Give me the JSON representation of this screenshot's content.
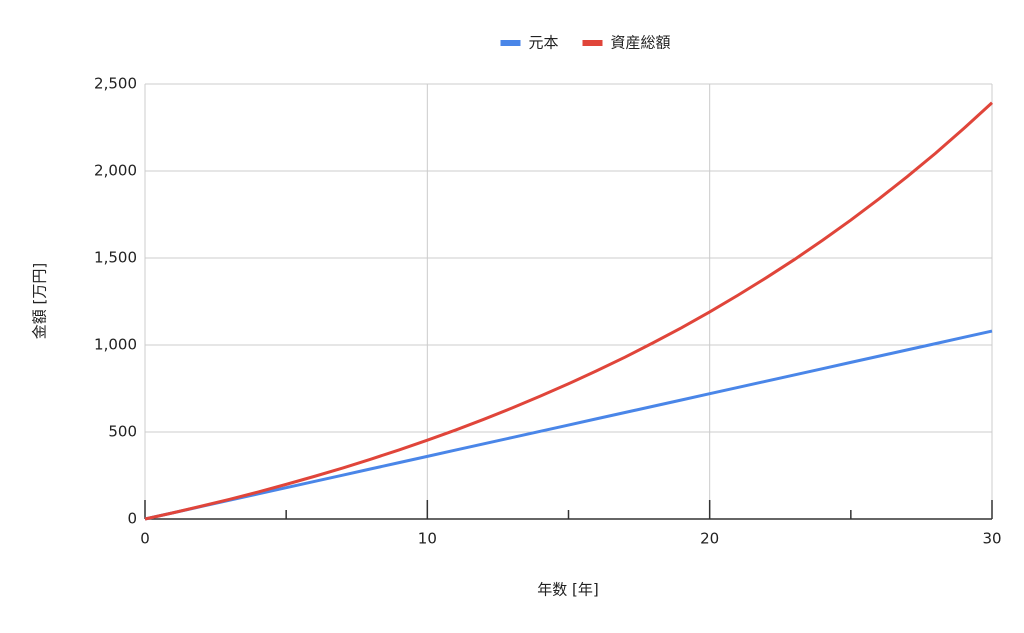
{
  "chart_data": {
    "type": "line",
    "x_label": "年数 [年]",
    "y_label": "金額 [万円]",
    "x": [
      0,
      1,
      2,
      3,
      4,
      5,
      6,
      7,
      8,
      9,
      10,
      11,
      12,
      13,
      14,
      15,
      16,
      17,
      18,
      19,
      20,
      21,
      22,
      23,
      24,
      25,
      26,
      27,
      28,
      29,
      30
    ],
    "series": [
      {
        "name": "元本",
        "color": "#4a86e8",
        "values": [
          0,
          36,
          72,
          108,
          144,
          180,
          216,
          252,
          288,
          324,
          360,
          396,
          432,
          468,
          504,
          540,
          576,
          612,
          648,
          684,
          720,
          756,
          792,
          828,
          864,
          900,
          936,
          972,
          1008,
          1044,
          1080
        ]
      },
      {
        "name": "資産総額",
        "color": "#e0453a",
        "values": [
          0,
          36,
          74,
          113,
          155,
          199,
          245,
          293,
          344,
          397,
          453,
          511,
          573,
          638,
          706,
          777,
          852,
          930,
          1013,
          1099,
          1190,
          1286,
          1386,
          1491,
          1602,
          1718,
          1840,
          1968,
          2102,
          2244,
          2392
        ]
      }
    ],
    "xlim": [
      0,
      30
    ],
    "xticks": [
      0,
      10,
      20,
      30
    ],
    "xminor_ticks": [
      5,
      15,
      25
    ],
    "ylim": [
      0,
      2500
    ],
    "yticks": [
      0,
      500,
      {
        "value": 1000,
        "label": "1,000"
      },
      {
        "value": 1500,
        "label": "1,500"
      },
      {
        "value": 2000,
        "label": "2,000"
      },
      {
        "value": 2500,
        "label": "2,500"
      }
    ],
    "grid": true,
    "legend": "top"
  }
}
